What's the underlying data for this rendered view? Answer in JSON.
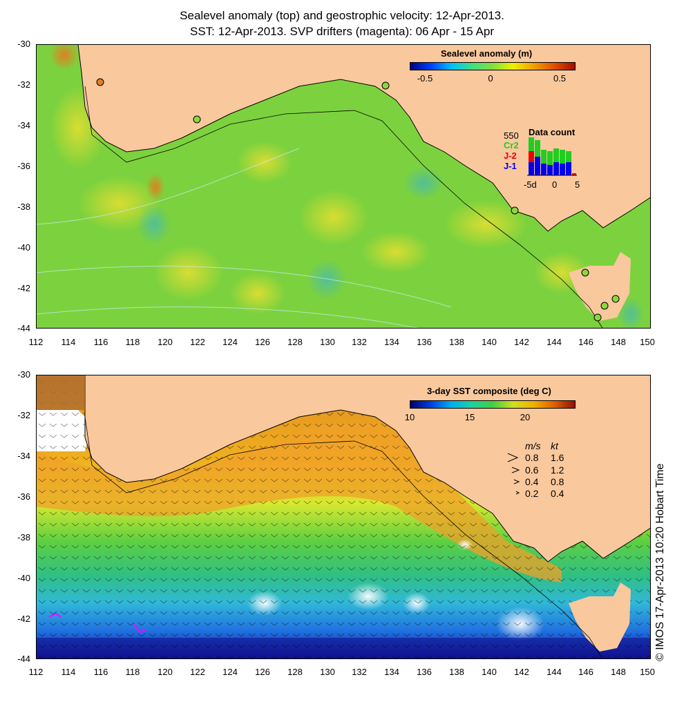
{
  "titles": {
    "line1": "Sealevel anomaly (top) and geostrophic velocity: 12-Apr-2013.",
    "line2": "SST: 12-Apr-2013. SVP drifters (magenta): 06 Apr - 15 Apr"
  },
  "axes": {
    "x_ticks": [
      "112",
      "114",
      "116",
      "118",
      "120",
      "122",
      "124",
      "126",
      "128",
      "130",
      "132",
      "134",
      "136",
      "138",
      "140",
      "142",
      "144",
      "146",
      "148",
      "150"
    ],
    "y_ticks": [
      "-30",
      "-32",
      "-34",
      "-36",
      "-38",
      "-40",
      "-42",
      "-44"
    ]
  },
  "top_panel": {
    "colorbar_title": "Sealevel anomaly (m)",
    "colorbar_labels": [
      "-0.5",
      "0",
      "0.5"
    ],
    "data_count": {
      "title": "Data count",
      "max_label": "550",
      "series": [
        {
          "label": "Cr2",
          "color": "#22cc22"
        },
        {
          "label": "J-2",
          "color": "#ee0000"
        },
        {
          "label": "J-1",
          "color": "#0000ee"
        }
      ],
      "x_labels": [
        "-5d",
        "0",
        "5"
      ]
    }
  },
  "bottom_panel": {
    "colorbar_title": "3-day SST composite (deg C)",
    "colorbar_labels": [
      "10",
      "15",
      "20"
    ],
    "speed_legend": {
      "header_ms": "m/s",
      "header_kt": "kt",
      "rows": [
        {
          "ms": "0.8",
          "kt": "1.6"
        },
        {
          "ms": "0.6",
          "kt": "1.2"
        },
        {
          "ms": "0.4",
          "kt": "0.8"
        },
        {
          "ms": "0.2",
          "kt": "0.4"
        }
      ]
    }
  },
  "credit": "© IMOS 17-Apr-2013 10:20 Hobart Time"
}
